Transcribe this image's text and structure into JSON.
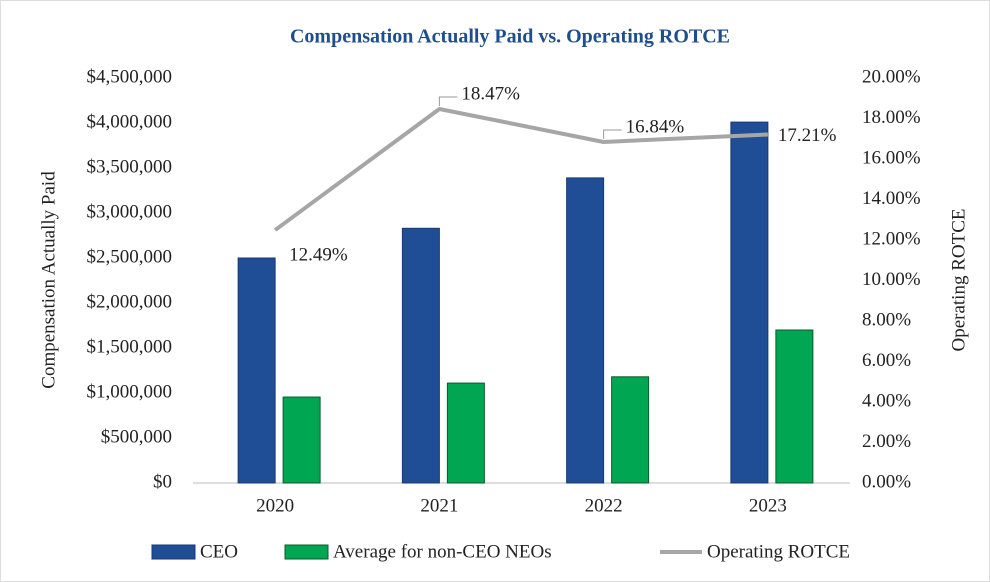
{
  "chart_data": {
    "type": "bar_line",
    "title": "Compensation Actually Paid vs. Operating ROTCE",
    "y_label": "Compensation Actually Paid",
    "y2_label": "Operating ROTCE",
    "categories": [
      "2020",
      "2021",
      "2022",
      "2023"
    ],
    "series": [
      {
        "name": "CEO",
        "type": "bar",
        "color": "#1f4e96",
        "values": [
          2500000,
          2830000,
          3390000,
          4010000
        ]
      },
      {
        "name": "Average for non-CEO NEOs",
        "type": "bar",
        "color": "#00a651",
        "values": [
          955000,
          1110000,
          1180000,
          1700000
        ]
      },
      {
        "name": "Operating ROTCE",
        "type": "line",
        "axis": "y2",
        "color": "#a6a6a6",
        "values": [
          12.49,
          18.47,
          16.84,
          17.21
        ],
        "value_labels": [
          "12.49%",
          "18.47%",
          "16.84%",
          "17.21%"
        ]
      }
    ],
    "ylim": [
      0,
      4500000
    ],
    "yticks": [
      {
        "value": 0,
        "label": "$0"
      },
      {
        "value": 500000,
        "label": "$500,000"
      },
      {
        "value": 1000000,
        "label": "$1,000,000"
      },
      {
        "value": 1500000,
        "label": "$1,500,000"
      },
      {
        "value": 2000000,
        "label": "$2,000,000"
      },
      {
        "value": 2500000,
        "label": "$2,500,000"
      },
      {
        "value": 3000000,
        "label": "$3,000,000"
      },
      {
        "value": 3500000,
        "label": "$3,500,000"
      },
      {
        "value": 4000000,
        "label": "$4,000,000"
      },
      {
        "value": 4500000,
        "label": "$4,500,000"
      }
    ],
    "y2lim": [
      0,
      20
    ],
    "y2ticks": [
      {
        "value": 0,
        "label": "0.00%"
      },
      {
        "value": 2,
        "label": "2.00%"
      },
      {
        "value": 4,
        "label": "4.00%"
      },
      {
        "value": 6,
        "label": "6.00%"
      },
      {
        "value": 8,
        "label": "8.00%"
      },
      {
        "value": 10,
        "label": "10.00%"
      },
      {
        "value": 12,
        "label": "12.00%"
      },
      {
        "value": 14,
        "label": "14.00%"
      },
      {
        "value": 16,
        "label": "16.00%"
      },
      {
        "value": 18,
        "label": "18.00%"
      },
      {
        "value": 20,
        "label": "20.00%"
      }
    ],
    "legend": "bottom"
  }
}
